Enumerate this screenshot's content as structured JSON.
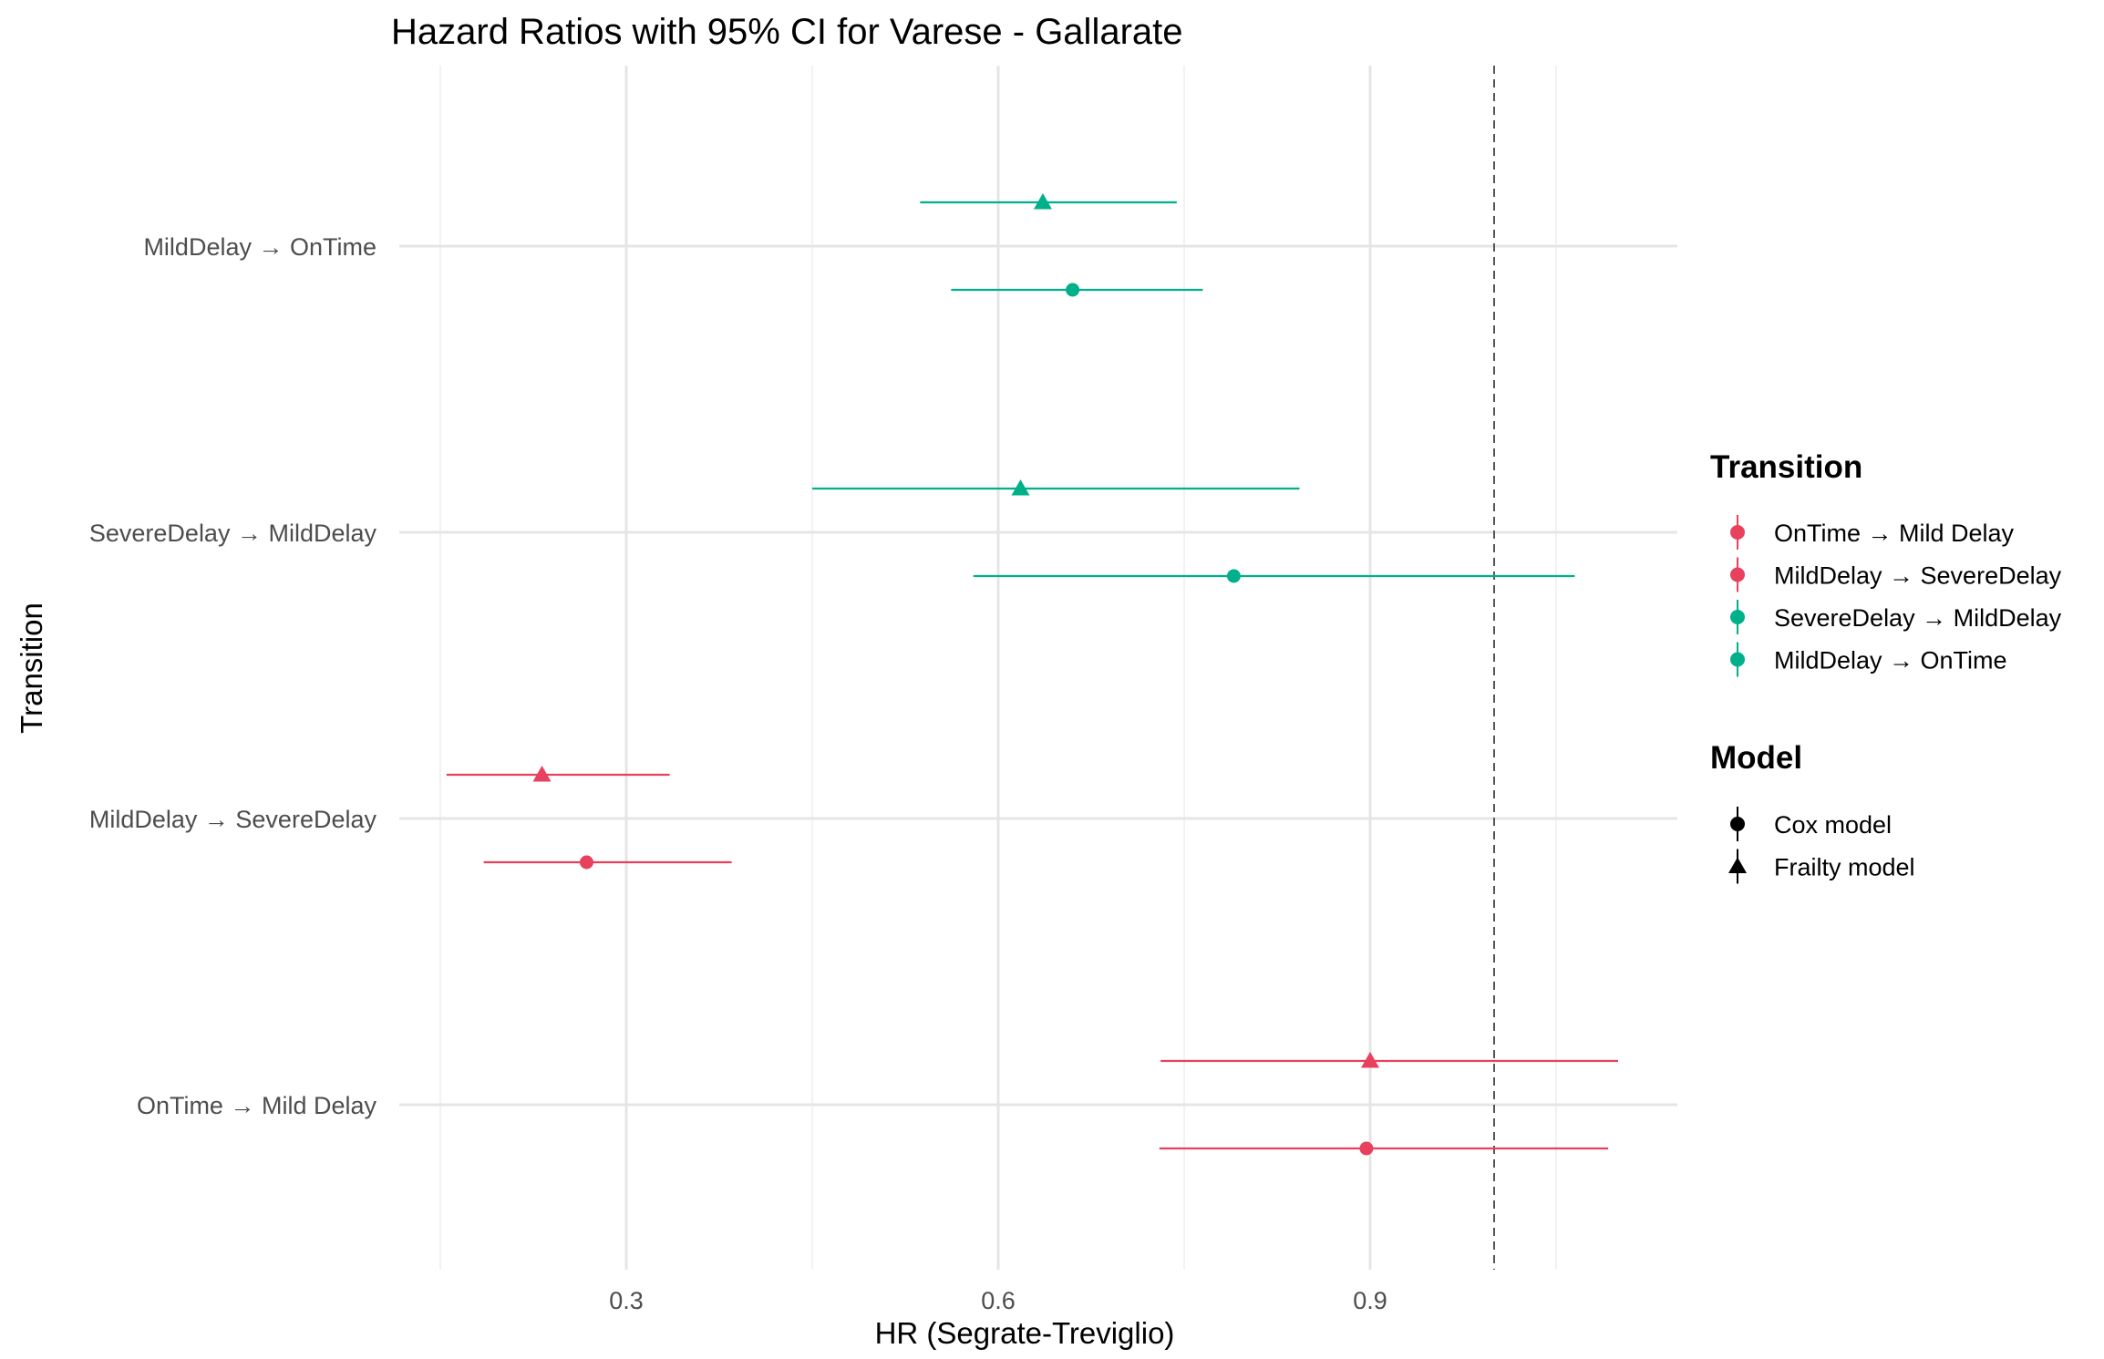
{
  "chart_data": {
    "type": "scatter",
    "subtype": "forest-plot",
    "title": "Hazard Ratios with 95% CI for Varese - Gallarate",
    "xlabel": "HR (Segrate-Treviglio)",
    "ylabel": "Transition",
    "xlim": [
      0.1,
      1.12
    ],
    "x_ticks": [
      0.3,
      0.6,
      0.9
    ],
    "x_tick_labels": [
      "0.3",
      "0.6",
      "0.9"
    ],
    "reference_line": 1.0,
    "grid": true,
    "categories": [
      "OnTime → Mild Delay",
      "MildDelay → SevereDelay",
      "SevereDelay → MildDelay",
      "MildDelay → OnTime"
    ],
    "points": [
      {
        "transition": "OnTime → Mild Delay",
        "model": "Cox model",
        "hr": 0.897,
        "lower": 0.73,
        "upper": 1.092
      },
      {
        "transition": "OnTime → Mild Delay",
        "model": "Frailty model",
        "hr": 0.9,
        "lower": 0.731,
        "upper": 1.1
      },
      {
        "transition": "MildDelay → SevereDelay",
        "model": "Cox model",
        "hr": 0.268,
        "lower": 0.185,
        "upper": 0.385
      },
      {
        "transition": "MildDelay → SevereDelay",
        "model": "Frailty model",
        "hr": 0.232,
        "lower": 0.155,
        "upper": 0.335
      },
      {
        "transition": "SevereDelay → MildDelay",
        "model": "Cox model",
        "hr": 0.79,
        "lower": 0.58,
        "upper": 1.065
      },
      {
        "transition": "SevereDelay → MildDelay",
        "model": "Frailty model",
        "hr": 0.618,
        "lower": 0.45,
        "upper": 0.843
      },
      {
        "transition": "MildDelay → OnTime",
        "model": "Cox model",
        "hr": 0.66,
        "lower": 0.562,
        "upper": 0.765
      },
      {
        "transition": "MildDelay → OnTime",
        "model": "Frailty model",
        "hr": 0.636,
        "lower": 0.537,
        "upper": 0.744
      }
    ],
    "legend": {
      "position": "right",
      "transition": {
        "title": "Transition",
        "items": [
          {
            "label": "OnTime → Mild Delay",
            "color": "#E8415E"
          },
          {
            "label": "MildDelay → SevereDelay",
            "color": "#E8415E"
          },
          {
            "label": "SevereDelay → MildDelay",
            "color": "#00B08B"
          },
          {
            "label": "MildDelay → OnTime",
            "color": "#00B08B"
          }
        ]
      },
      "model": {
        "title": "Model",
        "items": [
          {
            "label": "Cox model",
            "shape": "circle"
          },
          {
            "label": "Frailty model",
            "shape": "triangle"
          }
        ]
      }
    },
    "colors": {
      "OnTime → Mild Delay": "#E8415E",
      "MildDelay → SevereDelay": "#E8415E",
      "SevereDelay → MildDelay": "#00B08B",
      "MildDelay → OnTime": "#00B08B"
    }
  }
}
